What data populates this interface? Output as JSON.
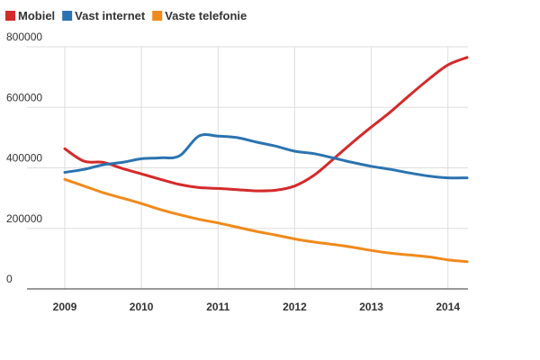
{
  "chart_data": {
    "type": "line",
    "title": "",
    "xlabel": "",
    "ylabel": "",
    "x_ticks": [
      "2009",
      "2010",
      "2011",
      "2012",
      "2013",
      "2014"
    ],
    "y_ticks": [
      "0",
      "200000",
      "400000",
      "600000",
      "800000"
    ],
    "xlim": [
      2009,
      2014.25
    ],
    "ylim": [
      0,
      800000
    ],
    "grid": "vertical-and-horizontal",
    "legend": "top-left",
    "series": [
      {
        "name": "Mobiel",
        "color": "#d42a2a",
        "points": [
          [
            2009.0,
            463000
          ],
          [
            2009.25,
            422000
          ],
          [
            2009.5,
            418000
          ],
          [
            2009.75,
            398000
          ],
          [
            2010.0,
            380000
          ],
          [
            2010.25,
            362000
          ],
          [
            2010.5,
            345000
          ],
          [
            2010.75,
            335000
          ],
          [
            2011.0,
            332000
          ],
          [
            2011.25,
            328000
          ],
          [
            2011.5,
            324000
          ],
          [
            2011.75,
            326000
          ],
          [
            2012.0,
            340000
          ],
          [
            2012.25,
            375000
          ],
          [
            2012.5,
            428000
          ],
          [
            2012.75,
            483000
          ],
          [
            2013.0,
            535000
          ],
          [
            2013.25,
            585000
          ],
          [
            2013.5,
            640000
          ],
          [
            2013.75,
            693000
          ],
          [
            2014.0,
            740000
          ],
          [
            2014.25,
            765000
          ]
        ]
      },
      {
        "name": "Vast internet",
        "color": "#2b73b0",
        "points": [
          [
            2009.0,
            385000
          ],
          [
            2009.25,
            395000
          ],
          [
            2009.5,
            410000
          ],
          [
            2009.75,
            418000
          ],
          [
            2010.0,
            430000
          ],
          [
            2010.25,
            433000
          ],
          [
            2010.5,
            440000
          ],
          [
            2010.75,
            505000
          ],
          [
            2011.0,
            505000
          ],
          [
            2011.25,
            500000
          ],
          [
            2011.5,
            485000
          ],
          [
            2011.75,
            472000
          ],
          [
            2012.0,
            455000
          ],
          [
            2012.25,
            447000
          ],
          [
            2012.5,
            433000
          ],
          [
            2012.75,
            418000
          ],
          [
            2013.0,
            405000
          ],
          [
            2013.25,
            395000
          ],
          [
            2013.5,
            383000
          ],
          [
            2013.75,
            373000
          ],
          [
            2014.0,
            367000
          ],
          [
            2014.25,
            367000
          ]
        ]
      },
      {
        "name": "Vaste telefonie",
        "color": "#f08a1c",
        "points": [
          [
            2009.0,
            362000
          ],
          [
            2009.25,
            340000
          ],
          [
            2009.5,
            318000
          ],
          [
            2009.75,
            300000
          ],
          [
            2010.0,
            282000
          ],
          [
            2010.25,
            262000
          ],
          [
            2010.5,
            245000
          ],
          [
            2010.75,
            230000
          ],
          [
            2011.0,
            218000
          ],
          [
            2011.25,
            204000
          ],
          [
            2011.5,
            190000
          ],
          [
            2011.75,
            178000
          ],
          [
            2012.0,
            165000
          ],
          [
            2012.25,
            155000
          ],
          [
            2012.5,
            147000
          ],
          [
            2012.75,
            138000
          ],
          [
            2013.0,
            127000
          ],
          [
            2013.25,
            118000
          ],
          [
            2013.5,
            112000
          ],
          [
            2013.75,
            106000
          ],
          [
            2014.0,
            96000
          ],
          [
            2014.25,
            90000
          ]
        ]
      }
    ]
  }
}
